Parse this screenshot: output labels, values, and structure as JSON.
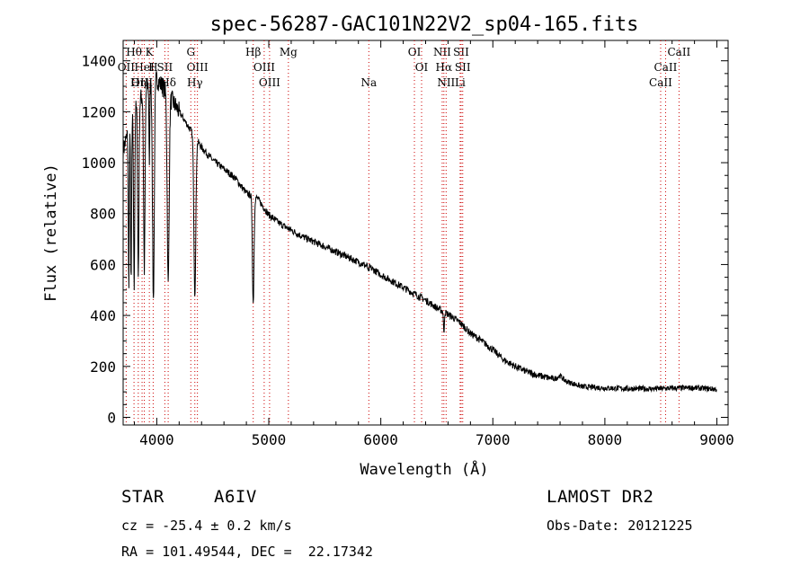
{
  "chart_data": {
    "type": "line",
    "title": "spec-56287-GAC101N22V2_sp04-165.fits",
    "xlabel": "Wavelength (Å)",
    "ylabel": "Flux (relative)",
    "xlim": [
      3700,
      9100
    ],
    "ylim": [
      -30,
      1480
    ],
    "xticks": [
      4000,
      5000,
      6000,
      7000,
      8000,
      9000
    ],
    "yticks": [
      0,
      200,
      400,
      600,
      800,
      1000,
      1200,
      1400
    ],
    "grid": false,
    "line_color": "#000000",
    "marker_color": "#cc0000",
    "continuum": [
      [
        3700,
        1050
      ],
      [
        3800,
        1200
      ],
      [
        3900,
        1290
      ],
      [
        4000,
        1330
      ],
      [
        4100,
        1270
      ],
      [
        4200,
        1200
      ],
      [
        4300,
        1130
      ],
      [
        4400,
        1060
      ],
      [
        4500,
        1010
      ],
      [
        4600,
        975
      ],
      [
        4700,
        940
      ],
      [
        4800,
        880
      ],
      [
        4900,
        860
      ],
      [
        5000,
        795
      ],
      [
        5100,
        760
      ],
      [
        5200,
        735
      ],
      [
        5300,
        710
      ],
      [
        5400,
        690
      ],
      [
        5500,
        670
      ],
      [
        5600,
        650
      ],
      [
        5700,
        630
      ],
      [
        5800,
        610
      ],
      [
        5900,
        590
      ],
      [
        6000,
        560
      ],
      [
        6100,
        535
      ],
      [
        6200,
        510
      ],
      [
        6300,
        485
      ],
      [
        6400,
        460
      ],
      [
        6500,
        430
      ],
      [
        6600,
        405
      ],
      [
        6700,
        375
      ],
      [
        6800,
        330
      ],
      [
        6900,
        300
      ],
      [
        7000,
        265
      ],
      [
        7100,
        225
      ],
      [
        7200,
        200
      ],
      [
        7300,
        180
      ],
      [
        7400,
        165
      ],
      [
        7500,
        155
      ],
      [
        7600,
        148
      ],
      [
        7700,
        135
      ],
      [
        7800,
        120
      ],
      [
        7900,
        118
      ],
      [
        8000,
        115
      ],
      [
        8200,
        113
      ],
      [
        8400,
        112
      ],
      [
        8600,
        114
      ],
      [
        8800,
        116
      ],
      [
        9000,
        110
      ]
    ],
    "absorption_lines": [
      {
        "wave": 3750,
        "depth": 600,
        "width": 6
      },
      {
        "wave": 3771,
        "depth": 650,
        "width": 6
      },
      {
        "wave": 3798,
        "depth": 700,
        "width": 7
      },
      {
        "wave": 3835,
        "depth": 680,
        "width": 8
      },
      {
        "wave": 3889,
        "depth": 700,
        "width": 9
      },
      {
        "wave": 3934,
        "depth": 300,
        "width": 5
      },
      {
        "wave": 3970,
        "depth": 860,
        "width": 11
      },
      {
        "wave": 4102,
        "depth": 750,
        "width": 12
      },
      {
        "wave": 4340,
        "depth": 620,
        "width": 12
      },
      {
        "wave": 4861,
        "depth": 420,
        "width": 10
      },
      {
        "wave": 5890,
        "depth": 25,
        "width": 6
      },
      {
        "wave": 6563,
        "depth": 90,
        "width": 5
      },
      {
        "wave": 7600,
        "depth": -15,
        "width": 30
      }
    ],
    "line_markers": {
      "row1": [
        {
          "label": "Hθ",
          "wave": 3797
        },
        {
          "label": "K",
          "wave": 3934
        },
        {
          "label": "G",
          "wave": 4304
        },
        {
          "label": "Hβ",
          "wave": 4861
        },
        {
          "label": "Mg",
          "wave": 5175
        },
        {
          "label": "OI",
          "wave": 6300
        },
        {
          "label": "NII",
          "wave": 6548
        },
        {
          "label": "SII",
          "wave": 6717
        },
        {
          "label": "CaII",
          "wave": 8662
        }
      ],
      "row2": [
        {
          "label": "OII",
          "wave": 3727
        },
        {
          "label": "HeI",
          "wave": 3889
        },
        {
          "label": "H",
          "wave": 3968
        },
        {
          "label": "SII",
          "wave": 4072
        },
        {
          "label": "OIII",
          "wave": 4363
        },
        {
          "label": "OIII",
          "wave": 4959
        },
        {
          "label": "OI",
          "wave": 6364
        },
        {
          "label": "Hα",
          "wave": 6563
        },
        {
          "label": "SII",
          "wave": 6731
        },
        {
          "label": "CaII",
          "wave": 8542
        }
      ],
      "row3": [
        {
          "label": "OIII",
          "wave": 3869
        },
        {
          "label": "Hη",
          "wave": 3835
        },
        {
          "label": "Hδ",
          "wave": 4102
        },
        {
          "label": "Hγ",
          "wave": 4340
        },
        {
          "label": "OIII",
          "wave": 5007
        },
        {
          "label": "Na",
          "wave": 5893
        },
        {
          "label": "NII",
          "wave": 6583
        },
        {
          "label": "Li",
          "wave": 6708
        },
        {
          "label": "CaII",
          "wave": 8498
        }
      ]
    }
  },
  "info": {
    "object_class": "STAR",
    "subclass": "A6IV",
    "survey": "LAMOST DR2",
    "cz": "cz = -25.4 ± 0.2 km/s",
    "obs_date": "Obs-Date: 20121225",
    "radec": "RA = 101.49544, DEC =  22.17342"
  }
}
